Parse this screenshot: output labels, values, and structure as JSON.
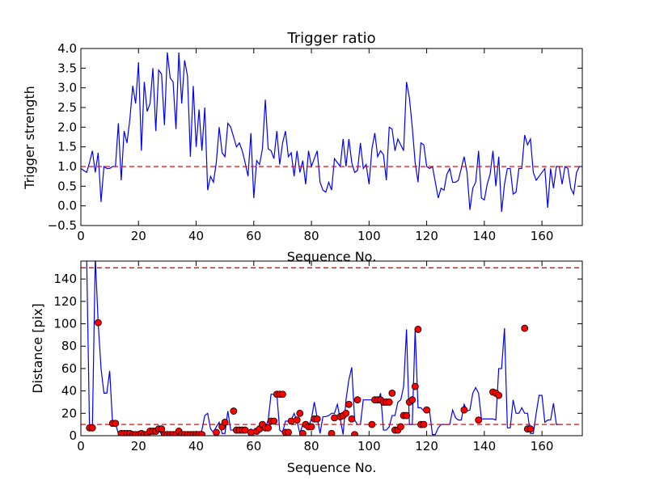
{
  "colors": {
    "line": "#0000ff",
    "threshold": "#ff0000",
    "marker_fill": "#ff0000",
    "marker_edge": "#000000",
    "axes": "#000000",
    "background": "#ffffff"
  },
  "chart_data": [
    {
      "type": "line",
      "title": "Trigger ratio",
      "xlabel": "Sequence No.",
      "ylabel": "Trigger strength",
      "xlim": [
        0,
        174
      ],
      "ylim": [
        -0.5,
        4.0
      ],
      "xticks": [
        0,
        20,
        40,
        60,
        80,
        100,
        120,
        140,
        160
      ],
      "yticks": [
        -0.5,
        0.0,
        0.5,
        1.0,
        1.5,
        2.0,
        2.5,
        3.0,
        3.5,
        4.0
      ],
      "ytick_labels": [
        "−0.5",
        "0.0",
        "0.5",
        "1.0",
        "1.5",
        "2.0",
        "2.5",
        "3.0",
        "3.5",
        "4.0"
      ],
      "threshold": 1.0,
      "series": [
        {
          "name": "Trigger strength",
          "values": [
            0.95,
            0.9,
            0.85,
            1.1,
            1.4,
            0.85,
            1.35,
            0.1,
            1.0,
            0.95,
            0.95,
            1.0,
            1.0,
            2.1,
            0.65,
            1.9,
            1.6,
            2.2,
            3.05,
            2.6,
            3.65,
            1.4,
            3.15,
            2.4,
            2.6,
            3.5,
            1.9,
            3.45,
            3.35,
            2.05,
            3.9,
            3.25,
            3.15,
            1.95,
            3.9,
            2.6,
            3.7,
            3.3,
            1.25,
            3.05,
            1.5,
            2.45,
            1.4,
            2.5,
            0.4,
            0.75,
            0.6,
            1.1,
            2.0,
            1.35,
            1.25,
            2.1,
            2.0,
            1.75,
            1.5,
            1.6,
            1.4,
            1.1,
            0.75,
            1.85,
            0.2,
            1.15,
            1.05,
            1.45,
            2.7,
            1.45,
            1.4,
            1.2,
            1.9,
            1.05,
            1.6,
            1.9,
            1.25,
            1.35,
            0.75,
            1.4,
            0.85,
            1.15,
            0.55,
            1.4,
            1.0,
            1.2,
            1.4,
            0.6,
            0.4,
            0.35,
            0.6,
            0.4,
            1.2,
            1.1,
            1.0,
            1.7,
            1.0,
            1.7,
            1.1,
            0.85,
            0.9,
            1.6,
            0.95,
            1.05,
            0.55,
            1.45,
            1.85,
            1.25,
            1.4,
            1.3,
            0.65,
            2.0,
            1.95,
            1.4,
            1.7,
            1.55,
            1.4,
            3.15,
            2.75,
            2.0,
            1.1,
            0.6,
            1.6,
            1.55,
            1.0,
            0.95,
            1.0,
            0.6,
            0.2,
            0.45,
            0.4,
            0.8,
            0.95,
            0.6,
            0.6,
            0.65,
            0.95,
            1.25,
            0.85,
            -0.1,
            0.45,
            0.6,
            1.4,
            0.2,
            0.15,
            0.55,
            0.8,
            1.4,
            0.5,
            1.25,
            -0.15,
            0.55,
            0.95,
            0.95,
            0.3,
            0.35,
            0.95,
            0.95,
            1.8,
            1.55,
            1.7,
            0.85,
            0.65,
            0.75,
            0.85,
            0.95,
            -0.05,
            0.95,
            0.45,
            1.0,
            1.0,
            0.55,
            1.0,
            0.95,
            0.45,
            0.3,
            0.85,
            1.0
          ]
        }
      ]
    },
    {
      "type": "line",
      "title": "",
      "xlabel": "Sequence No.",
      "ylabel": "Distance [pix]",
      "xlim": [
        0,
        174
      ],
      "ylim": [
        0,
        156
      ],
      "xticks": [
        0,
        20,
        40,
        60,
        80,
        100,
        120,
        140,
        160
      ],
      "yticks": [
        0,
        20,
        40,
        60,
        80,
        100,
        120,
        140
      ],
      "thresholds": [
        150,
        10
      ],
      "series": [
        {
          "name": "Distance",
          "values": [
            160,
            160,
            160,
            7,
            7,
            160,
            101,
            60,
            38,
            38,
            58,
            11,
            11,
            2,
            2,
            2,
            2,
            1,
            1,
            1,
            2,
            1,
            1,
            4,
            4,
            4,
            6,
            6,
            1,
            1,
            1,
            1,
            1,
            4,
            1,
            1,
            1,
            1,
            1,
            1,
            1,
            1,
            5,
            18,
            20,
            6,
            3,
            8,
            12,
            2,
            2,
            22,
            5,
            5,
            5,
            5,
            3,
            4,
            4,
            6,
            3,
            3,
            6,
            10,
            7,
            14,
            37,
            37,
            37,
            5,
            3,
            13,
            13,
            14,
            20,
            13,
            2,
            10,
            8,
            8,
            15,
            30,
            16,
            2,
            17,
            17,
            18,
            20,
            20,
            28,
            15,
            1,
            32,
            50,
            61,
            14,
            10,
            10,
            32,
            32,
            32,
            32,
            30,
            30,
            38,
            5,
            5,
            8,
            18,
            18,
            30,
            32,
            44,
            95,
            10,
            10,
            95,
            25,
            25,
            22,
            22,
            22,
            1,
            1,
            7,
            10,
            10,
            10,
            10,
            23,
            16,
            14,
            14,
            28,
            22,
            23,
            38,
            43,
            38,
            15,
            15,
            15,
            15,
            15,
            14,
            60,
            60,
            96,
            7,
            7,
            32,
            20,
            20,
            25,
            20,
            20,
            2,
            2,
            20,
            36,
            36,
            12,
            14,
            14,
            29,
            10,
            10
          ]
        },
        {
          "name": "Matched points",
          "type": "scatter",
          "x": [
            3,
            4,
            6,
            11,
            12,
            14,
            15,
            16,
            17,
            18,
            19,
            20,
            21,
            22,
            23,
            24,
            25,
            26,
            27,
            28,
            29,
            30,
            31,
            32,
            33,
            34,
            35,
            36,
            37,
            38,
            39,
            40,
            41,
            42,
            47,
            49,
            50,
            53,
            54,
            55,
            56,
            57,
            59,
            61,
            62,
            63,
            64,
            65,
            66,
            67,
            68,
            69,
            70,
            71,
            72,
            73,
            75,
            76,
            77,
            78,
            79,
            80,
            81,
            82,
            87,
            88,
            90,
            91,
            92,
            93,
            94,
            95,
            96,
            101,
            102,
            103,
            104,
            105,
            106,
            107,
            108,
            109,
            110,
            111,
            112,
            113,
            114,
            115,
            116,
            117,
            118,
            119,
            120,
            133,
            138,
            143,
            144,
            145,
            154,
            155,
            156
          ],
          "y": [
            7,
            7,
            101,
            11,
            11,
            2,
            2,
            2,
            2,
            1,
            1,
            1,
            2,
            1,
            1,
            4,
            4,
            4,
            6,
            6,
            1,
            1,
            1,
            1,
            1,
            4,
            1,
            1,
            1,
            1,
            1,
            1,
            1,
            1,
            3,
            8,
            12,
            22,
            5,
            5,
            5,
            5,
            3,
            4,
            6,
            10,
            7,
            7,
            13,
            13,
            37,
            37,
            37,
            3,
            3,
            13,
            14,
            20,
            2,
            10,
            8,
            8,
            15,
            15,
            2,
            16,
            17,
            18,
            20,
            28,
            15,
            1,
            32,
            10,
            32,
            32,
            32,
            30,
            30,
            30,
            38,
            5,
            5,
            8,
            18,
            18,
            30,
            32,
            44,
            95,
            10,
            10,
            23,
            23,
            14,
            39,
            38,
            36,
            96,
            6,
            6
          ]
        }
      ]
    }
  ]
}
